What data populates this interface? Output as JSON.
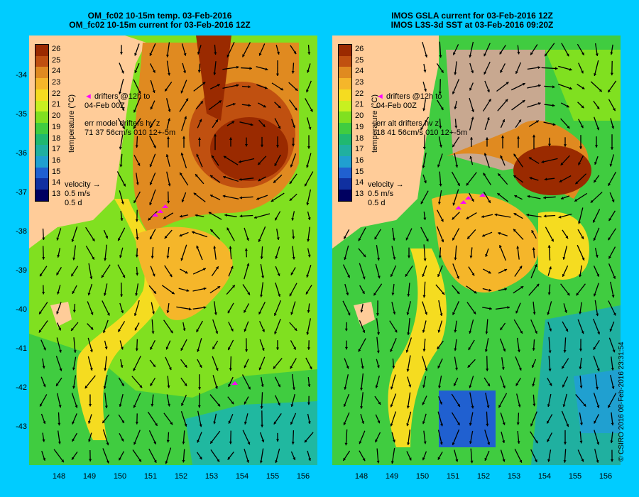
{
  "left_panel": {
    "title_line1": "OM_fc02 10-15m temp. 03-Feb-2016",
    "title_line2": "OM_fc02 10-15m current for 03-Feb-2016 12Z",
    "drifters_line1": "drifters @12h to",
    "drifters_line2": "04-Feb 00Z",
    "err_line1": "err model drifters hv z",
    "err_line2": "71 37 56cm/s 010 12+-5m"
  },
  "right_panel": {
    "title_line1": "IMOS GSLA current for 03-Feb-2016 12Z",
    "title_line2": "IMOS L3S-3d SST at 03-Feb-2016 09:20Z",
    "drifters_line1": "drifters @12h to",
    "drifters_line2": "04-Feb 00Z",
    "err_line1": "err alt drifters hv z",
    "err_line2": "18 41 56cm/s 010 12+-5m"
  },
  "colorbar": {
    "title": "temperature (°C)",
    "ticks": [
      "26",
      "25",
      "24",
      "23",
      "22",
      "21",
      "20",
      "19",
      "18",
      "17",
      "16",
      "15",
      "14",
      "13"
    ],
    "colors": [
      "#9a2a00",
      "#c05010",
      "#e08a20",
      "#f5b62a",
      "#f5dc20",
      "#c8f020",
      "#80e020",
      "#40cc40",
      "#20b870",
      "#20b0a0",
      "#20a0d0",
      "#2060d0",
      "#1030a0",
      "#000060"
    ]
  },
  "velocity_key": {
    "label": "velocity",
    "speed": "0.5 m/s",
    "duration": "0.5 d"
  },
  "y_axis_labels": [
    "-34",
    "-35",
    "-36",
    "-37",
    "-38",
    "-39",
    "-40",
    "-41",
    "-42",
    "-43"
  ],
  "x_axis_labels": [
    "148",
    "149",
    "150",
    "151",
    "152",
    "153",
    "154",
    "155",
    "156"
  ],
  "copyright": "© CSIRO 2016   08-Feb-2016 23:31:54"
}
